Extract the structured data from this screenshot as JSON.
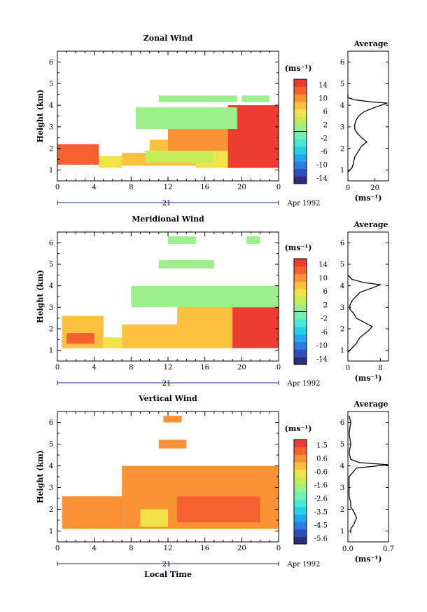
{
  "figure": {
    "bottom_xlabel": "Local Time",
    "date_label": "Apr 1992",
    "day_label": "21"
  },
  "panels": [
    {
      "title": "Zonal Wind",
      "avg_title": "Average",
      "unit": "(ms⁻¹)",
      "avg_unit": "(ms⁻¹)",
      "ylabel": "Height (km)",
      "xticks": [
        "0",
        "4",
        "8",
        "12",
        "16",
        "20",
        "0"
      ],
      "yticks": [
        "1",
        "2",
        "3",
        "4",
        "5",
        "6"
      ],
      "colorbar_ticks": [
        "14",
        "10",
        "6",
        "2",
        "-2",
        "-6",
        "-10",
        "-14"
      ],
      "avg_xticks": [
        "0",
        "20"
      ]
    },
    {
      "title": "Meridional Wind",
      "avg_title": "Average",
      "unit": "(ms⁻¹)",
      "avg_unit": "(ms⁻¹)",
      "ylabel": "Height (km)",
      "xticks": [
        "0",
        "4",
        "8",
        "12",
        "16",
        "20",
        "0"
      ],
      "yticks": [
        "1",
        "2",
        "3",
        "4",
        "5",
        "6"
      ],
      "colorbar_ticks": [
        "14",
        "10",
        "6",
        "2",
        "-2",
        "-6",
        "-10",
        "-14"
      ],
      "avg_xticks": [
        "0",
        "8"
      ]
    },
    {
      "title": "Vertical Wind",
      "avg_title": "Average",
      "unit": "(ms⁻¹)",
      "avg_unit": "(ms⁻¹)",
      "ylabel": "Height (km)",
      "xticks": [
        "0",
        "4",
        "8",
        "12",
        "16",
        "20",
        "0"
      ],
      "yticks": [
        "1",
        "2",
        "3",
        "4",
        "5",
        "6"
      ],
      "colorbar_ticks": [
        "1.5",
        "0.6",
        "-0.6",
        "-1.6",
        "-2.6",
        "-3.5",
        "-4.5",
        "-5.6"
      ],
      "avg_xticks": [
        "0.0",
        "0.7"
      ]
    }
  ],
  "chart_data": [
    {
      "type": "heatmap",
      "title": "Zonal Wind",
      "xlabel": "",
      "ylabel": "Height (km)",
      "xlim": [
        0,
        24
      ],
      "ylim": [
        0.5,
        6.5
      ],
      "colorbar_range": [
        -16,
        16
      ],
      "regions": [
        {
          "t0": 0,
          "t1": 4.5,
          "h0": 1.25,
          "h1": 2.2,
          "value": 13
        },
        {
          "t0": 4.5,
          "t1": 7,
          "h0": 1.1,
          "h1": 1.65,
          "value": 5
        },
        {
          "t0": 7,
          "t1": 10,
          "h0": 1.2,
          "h1": 1.8,
          "value": 7
        },
        {
          "t0": 10,
          "t1": 15,
          "h0": 1.2,
          "h1": 2.4,
          "value": 8
        },
        {
          "t0": 15,
          "t1": 19,
          "h0": 1.1,
          "h1": 2.2,
          "value": 6
        },
        {
          "t0": 9.5,
          "t1": 17,
          "h0": 1.35,
          "h1": 1.9,
          "value": 3
        },
        {
          "t0": 12,
          "t1": 18.5,
          "h0": 1.9,
          "h1": 2.9,
          "value": 11
        },
        {
          "t0": 18.5,
          "t1": 24,
          "h0": 1.1,
          "h1": 4.0,
          "value": 14
        },
        {
          "t0": 8.5,
          "t1": 19.5,
          "h0": 2.9,
          "h1": 3.9,
          "value": 1
        },
        {
          "t0": 11,
          "t1": 19.5,
          "h0": 4.15,
          "h1": 4.45,
          "value": 1
        },
        {
          "t0": 20,
          "t1": 23,
          "h0": 4.15,
          "h1": 4.45,
          "value": 1
        }
      ],
      "average_profile": {
        "xlim": [
          0,
          30
        ],
        "height": [
          0.9,
          1.1,
          1.3,
          1.6,
          1.9,
          2.1,
          2.3,
          2.5,
          2.7,
          2.9,
          3.1,
          3.3,
          3.5,
          3.7,
          3.9,
          4.1,
          4.15,
          4.25,
          4.35,
          4.5
        ],
        "value": [
          0,
          3,
          4,
          5,
          8,
          10,
          14,
          10,
          7,
          5,
          5,
          6,
          8,
          12,
          20,
          29,
          18,
          5,
          0,
          0
        ]
      }
    },
    {
      "type": "heatmap",
      "title": "Meridional Wind",
      "xlabel": "",
      "ylabel": "Height (km)",
      "xlim": [
        0,
        24
      ],
      "ylim": [
        0.5,
        6.5
      ],
      "colorbar_range": [
        -16,
        16
      ],
      "regions": [
        {
          "t0": 0.5,
          "t1": 5,
          "h0": 1.1,
          "h1": 2.6,
          "value": 8
        },
        {
          "t0": 5,
          "t1": 7,
          "h0": 1.1,
          "h1": 1.6,
          "value": 6
        },
        {
          "t0": 7,
          "t1": 13,
          "h0": 1.1,
          "h1": 2.2,
          "value": 7
        },
        {
          "t0": 13,
          "t1": 19,
          "h0": 1.1,
          "h1": 3.2,
          "value": 9
        },
        {
          "t0": 19,
          "t1": 24,
          "h0": 1.1,
          "h1": 3.3,
          "value": 14
        },
        {
          "t0": 1,
          "t1": 4,
          "h0": 1.3,
          "h1": 1.8,
          "value": 12
        },
        {
          "t0": 8,
          "t1": 24,
          "h0": 3.0,
          "h1": 4.0,
          "value": 1
        },
        {
          "t0": 11,
          "t1": 17,
          "h0": 4.8,
          "h1": 5.2,
          "value": 1
        },
        {
          "t0": 12,
          "t1": 15,
          "h0": 5.95,
          "h1": 6.3,
          "value": 1
        },
        {
          "t0": 20.5,
          "t1": 22,
          "h0": 5.95,
          "h1": 6.3,
          "value": 1
        }
      ],
      "average_profile": {
        "xlim": [
          0,
          10
        ],
        "height": [
          0.9,
          1.1,
          1.3,
          1.6,
          1.9,
          2.1,
          2.3,
          2.5,
          2.7,
          2.9,
          3.1,
          3.3,
          3.5,
          3.7,
          3.9,
          4.05,
          4.15,
          4.3,
          4.5
        ],
        "value": [
          0,
          1,
          2,
          3,
          5,
          6,
          4,
          2,
          1.5,
          0.5,
          0.5,
          1,
          2,
          3,
          6,
          8,
          4,
          1,
          0
        ]
      }
    },
    {
      "type": "heatmap",
      "title": "Vertical Wind",
      "xlabel": "Local Time",
      "ylabel": "Height (km)",
      "xlim": [
        0,
        24
      ],
      "ylim": [
        0.5,
        6.5
      ],
      "colorbar_range": [
        -6.1,
        2.0
      ],
      "regions": [
        {
          "t0": 0.5,
          "t1": 7,
          "h0": 1.1,
          "h1": 2.6,
          "value": 0.3
        },
        {
          "t0": 7,
          "t1": 24,
          "h0": 1.1,
          "h1": 4.0,
          "value": 0.6
        },
        {
          "t0": 13,
          "t1": 22,
          "h0": 1.4,
          "h1": 2.6,
          "value": 1.3
        },
        {
          "t0": 9,
          "t1": 12,
          "h0": 1.2,
          "h1": 2.0,
          "value": -0.4
        },
        {
          "t0": 11,
          "t1": 14,
          "h0": 4.8,
          "h1": 5.2,
          "value": 0.6
        },
        {
          "t0": 11.5,
          "t1": 13.5,
          "h0": 6.0,
          "h1": 6.3,
          "value": 0.6
        }
      ],
      "average_profile": {
        "xlim": [
          0.0,
          0.7
        ],
        "height": [
          0.9,
          1.1,
          1.3,
          1.6,
          1.9,
          2.1,
          2.3,
          2.6,
          3.0,
          3.5,
          3.9,
          4.05,
          4.15,
          4.3,
          4.6,
          5.0,
          5.5,
          6.0,
          6.3
        ],
        "value": [
          0.05,
          0.05,
          0.1,
          0.15,
          0.1,
          0.05,
          0.05,
          0.02,
          0.02,
          0.02,
          0.15,
          0.7,
          0.2,
          0.05,
          0.02,
          0.05,
          0.02,
          0.05,
          0.02
        ]
      }
    }
  ],
  "palettes": {
    "wind": [
      "#2b2d7e",
      "#2f4fb8",
      "#2d7ae0",
      "#1fa8ec",
      "#27cfe6",
      "#49e8d4",
      "#72f0b8",
      "#9bf08c",
      "#c4ec5a",
      "#f0e34a",
      "#fbc03e",
      "#fb9236",
      "#f4612f",
      "#ee3b2f"
    ],
    "vertical": [
      "#2b2d7e",
      "#2f4fb8",
      "#2d7ae0",
      "#1fa8ec",
      "#27cfe6",
      "#49e8d4",
      "#72f0b8",
      "#9bf08c",
      "#c4ec5a",
      "#f0e34a",
      "#fbc03e",
      "#fb9236",
      "#f4612f",
      "#ee3b2f"
    ]
  }
}
